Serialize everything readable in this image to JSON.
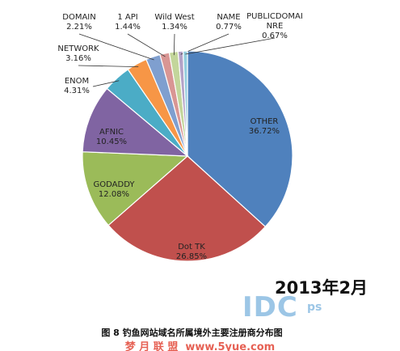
{
  "chart_data": {
    "type": "pie",
    "title": "图 8 钓鱼网站域名所属境外主要注册商分布图",
    "annotation": "2013年2月",
    "watermarks": [
      "IDC",
      "ps",
      "梦 月 联 盟  www.5yue.com"
    ],
    "categories": [
      "OTHER",
      "Dot TK",
      "GODADDY",
      "AFNIC",
      "ENOM",
      "NETWORK",
      "DOMAIN",
      "1 API",
      "Wild West",
      "NAME",
      "PUBLICDOMAINRE"
    ],
    "values": [
      36.72,
      26.85,
      12.08,
      10.45,
      4.31,
      3.16,
      2.21,
      1.44,
      1.34,
      0.77,
      0.67
    ],
    "value_labels": [
      "36.72%",
      "26.85%",
      "12.08%",
      "10.45%",
      "4.31%",
      "3.16%",
      "2.21%",
      "1.44%",
      "1.34%",
      "0.77%",
      "0.67%"
    ],
    "colors": [
      "#4f81bd",
      "#c0504d",
      "#9bbb59",
      "#8064a2",
      "#4bacc6",
      "#f79646",
      "#7f9fcf",
      "#d99694",
      "#c3d69b",
      "#b3a2c7",
      "#93cddd"
    ]
  }
}
